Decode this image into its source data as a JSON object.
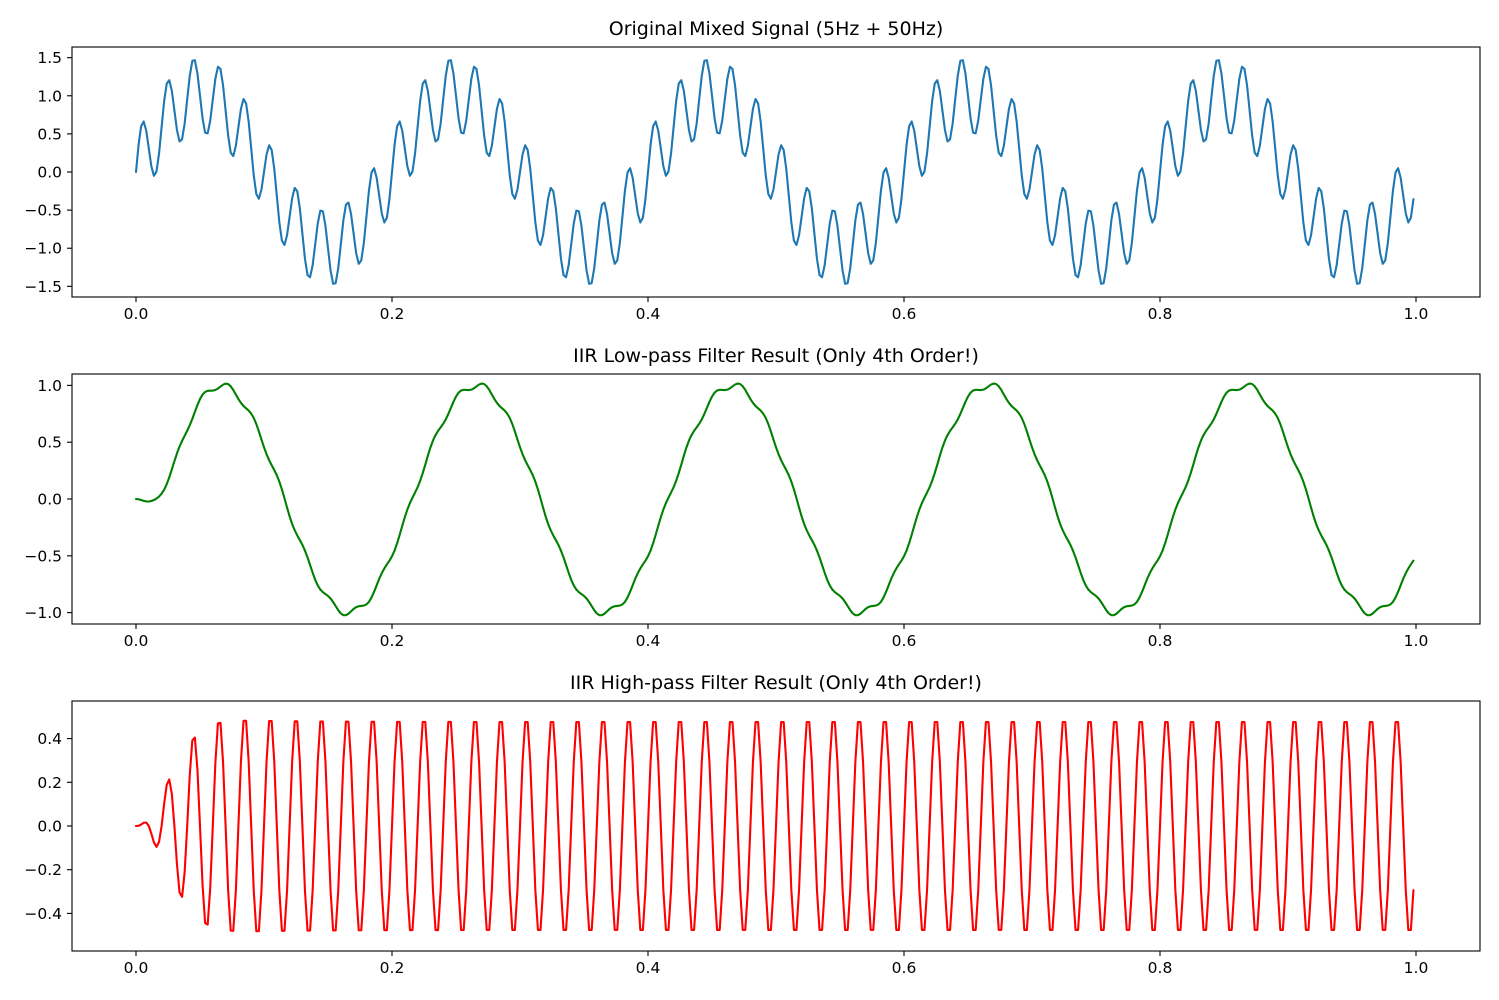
{
  "chart_data": [
    {
      "type": "line",
      "title": "Original Mixed Signal (5Hz + 50Hz)",
      "xlabel": "",
      "ylabel": "",
      "xlim": [
        -0.05,
        1.05
      ],
      "ylim": [
        -1.64,
        1.64
      ],
      "xticks": [
        0.0,
        0.2,
        0.4,
        0.6,
        0.8,
        1.0
      ],
      "xtick_labels": [
        "0.0",
        "0.2",
        "0.4",
        "0.6",
        "0.8",
        "1.0"
      ],
      "yticks": [
        -1.5,
        -1.0,
        -0.5,
        0.0,
        0.5,
        1.0,
        1.5
      ],
      "ytick_labels": [
        "−1.5",
        "−1.0",
        "−0.5",
        "0.0",
        "0.5",
        "1.0",
        "1.5"
      ],
      "grid": false,
      "series": [
        {
          "color": "#1f77b4",
          "signal": {
            "components": [
              {
                "amplitude": 1.0,
                "frequency_hz": 5,
                "phase": 0
              },
              {
                "amplitude": 0.5,
                "frequency_hz": 50,
                "phase": 0
              }
            ],
            "x_start": 0.0,
            "x_end": 0.998,
            "sample_count": 500
          }
        }
      ]
    },
    {
      "type": "line",
      "title": "IIR Low-pass Filter Result (Only 4th Order!)",
      "xlabel": "",
      "ylabel": "",
      "xlim": [
        -0.05,
        1.05
      ],
      "ylim": [
        -1.1,
        1.1
      ],
      "xticks": [
        0.0,
        0.2,
        0.4,
        0.6,
        0.8,
        1.0
      ],
      "xtick_labels": [
        "0.0",
        "0.2",
        "0.4",
        "0.6",
        "0.8",
        "1.0"
      ],
      "yticks": [
        -1.0,
        -0.5,
        0.0,
        0.5,
        1.0
      ],
      "ytick_labels": [
        "−1.0",
        "−0.5",
        "0.0",
        "0.5",
        "1.0"
      ],
      "grid": false,
      "series": [
        {
          "color": "#008000",
          "signal": {
            "components": [
              {
                "amplitude": 1.0,
                "frequency_hz": 5,
                "phase": -0.5
              },
              {
                "amplitude": 0.03,
                "frequency_hz": 50,
                "phase": -2.2
              }
            ],
            "startup_transient_s": 0.045,
            "x_start": 0.0,
            "x_end": 0.998,
            "sample_count": 500
          }
        }
      ]
    },
    {
      "type": "line",
      "title": "IIR High-pass Filter Result (Only 4th Order!)",
      "xlabel": "",
      "ylabel": "",
      "xlim": [
        -0.05,
        1.05
      ],
      "ylim": [
        -0.572,
        0.572
      ],
      "xticks": [
        0.0,
        0.2,
        0.4,
        0.6,
        0.8,
        1.0
      ],
      "xtick_labels": [
        "0.0",
        "0.2",
        "0.4",
        "0.6",
        "0.8",
        "1.0"
      ],
      "yticks": [
        -0.4,
        -0.2,
        0.0,
        0.2,
        0.4
      ],
      "ytick_labels": [
        "−0.4",
        "−0.2",
        "0.0",
        "0.2",
        "0.4"
      ],
      "grid": false,
      "series": [
        {
          "color": "#ff0000",
          "signal": {
            "components": [
              {
                "amplitude": 0.5,
                "frequency_hz": 50,
                "phase": 0
              }
            ],
            "startup_overshoot": 0.06,
            "startup_transient_s": 0.06,
            "x_start": 0.0,
            "x_end": 0.998,
            "sample_count": 500
          }
        }
      ]
    }
  ]
}
